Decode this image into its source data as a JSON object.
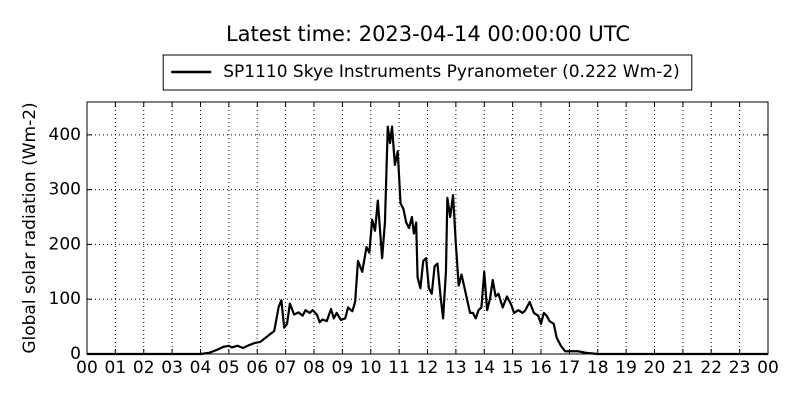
{
  "chart_data": {
    "type": "line",
    "title": "Latest time: 2023-04-14 00:00:00 UTC",
    "ylabel": "Global solar radiation (Wm-2)",
    "grid": true,
    "legend": "upper center",
    "xlim": [
      0,
      24
    ],
    "ylim": [
      0,
      460
    ],
    "xticks": [
      {
        "value": 0,
        "label": "00"
      },
      {
        "value": 1,
        "label": "01"
      },
      {
        "value": 2,
        "label": "02"
      },
      {
        "value": 3,
        "label": "03"
      },
      {
        "value": 4,
        "label": "04"
      },
      {
        "value": 5,
        "label": "05"
      },
      {
        "value": 6,
        "label": "06"
      },
      {
        "value": 7,
        "label": "07"
      },
      {
        "value": 8,
        "label": "08"
      },
      {
        "value": 9,
        "label": "09"
      },
      {
        "value": 10,
        "label": "10"
      },
      {
        "value": 11,
        "label": "11"
      },
      {
        "value": 12,
        "label": "12"
      },
      {
        "value": 13,
        "label": "13"
      },
      {
        "value": 14,
        "label": "14"
      },
      {
        "value": 15,
        "label": "15"
      },
      {
        "value": 16,
        "label": "16"
      },
      {
        "value": 17,
        "label": "17"
      },
      {
        "value": 18,
        "label": "18"
      },
      {
        "value": 19,
        "label": "19"
      },
      {
        "value": 20,
        "label": "20"
      },
      {
        "value": 21,
        "label": "21"
      },
      {
        "value": 22,
        "label": "22"
      },
      {
        "value": 23,
        "label": "23"
      },
      {
        "value": 24,
        "label": "00"
      }
    ],
    "yticks": [
      0,
      100,
      200,
      300,
      400
    ],
    "x": [
      0,
      4.0,
      4.3,
      4.6,
      4.8,
      5.0,
      5.1,
      5.3,
      5.5,
      5.7,
      5.9,
      6.1,
      6.3,
      6.5,
      6.6,
      6.75,
      6.85,
      6.95,
      7.05,
      7.15,
      7.3,
      7.45,
      7.6,
      7.7,
      7.85,
      7.95,
      8.1,
      8.2,
      8.3,
      8.45,
      8.6,
      8.7,
      8.8,
      8.95,
      9.1,
      9.2,
      9.35,
      9.45,
      9.55,
      9.7,
      9.85,
      9.95,
      10.05,
      10.15,
      10.25,
      10.4,
      10.5,
      10.6,
      10.68,
      10.75,
      10.85,
      10.95,
      11.05,
      11.15,
      11.25,
      11.35,
      11.45,
      11.52,
      11.6,
      11.65,
      11.75,
      11.85,
      11.95,
      12.05,
      12.15,
      12.25,
      12.35,
      12.45,
      12.55,
      12.65,
      12.7,
      12.8,
      12.9,
      13.0,
      13.1,
      13.2,
      13.35,
      13.5,
      13.6,
      13.7,
      13.8,
      13.9,
      14.0,
      14.1,
      14.2,
      14.3,
      14.4,
      14.5,
      14.65,
      14.8,
      14.95,
      15.05,
      15.2,
      15.35,
      15.45,
      15.6,
      15.75,
      15.9,
      16.0,
      16.1,
      16.2,
      16.3,
      16.45,
      16.55,
      16.7,
      16.85,
      17.0,
      17.3,
      17.6,
      18.0,
      24.0
    ],
    "series": [
      {
        "name": "SP1110 Skye Instruments Pyranometer (0.222 Wm-2)",
        "color": "#000000",
        "values": [
          0,
          0,
          2,
          8,
          13,
          15,
          12,
          15,
          11,
          16,
          20,
          22,
          30,
          38,
          42,
          85,
          98,
          48,
          55,
          92,
          72,
          76,
          70,
          80,
          75,
          80,
          72,
          58,
          63,
          60,
          82,
          65,
          75,
          62,
          65,
          85,
          78,
          95,
          170,
          150,
          195,
          185,
          245,
          225,
          280,
          175,
          240,
          415,
          385,
          415,
          345,
          370,
          275,
          265,
          240,
          230,
          250,
          220,
          240,
          140,
          120,
          170,
          175,
          120,
          110,
          160,
          165,
          110,
          65,
          150,
          285,
          250,
          290,
          200,
          125,
          145,
          110,
          75,
          75,
          65,
          80,
          85,
          150,
          80,
          100,
          135,
          105,
          110,
          85,
          105,
          90,
          75,
          80,
          75,
          80,
          95,
          75,
          70,
          55,
          75,
          70,
          60,
          55,
          30,
          15,
          5,
          5,
          5,
          2,
          0,
          0
        ]
      }
    ]
  }
}
